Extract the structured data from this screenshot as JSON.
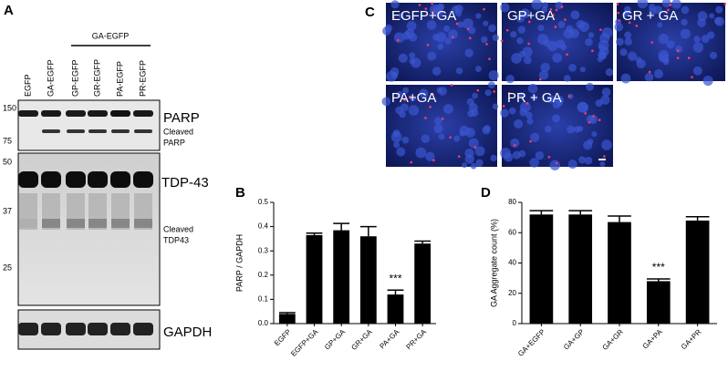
{
  "panel_labels": [
    "A",
    "B",
    "C",
    "D"
  ],
  "blot": {
    "group_label": "GA-EGFP",
    "lanes": [
      "EGFP",
      "GA-EGFP",
      "GP-EGFP",
      "GR-EGFP",
      "PA-EGFP",
      "PR-EGFP"
    ],
    "parp_markers": [
      "150",
      "75"
    ],
    "tdp_markers": [
      "50",
      "37",
      "25"
    ],
    "parp_label": "PARP",
    "cleaved_parp": [
      "Cleaved",
      "PARP"
    ],
    "tdp_label": "TDP-43",
    "cleaved_tdp": [
      "Cleaved",
      "TDP43"
    ],
    "gapdh_label": "GAPDH"
  },
  "micrographs": [
    "EGFP+GA",
    "GP+GA",
    "GR + GA",
    "PA+GA",
    "PR + GA"
  ],
  "chart_data": [
    {
      "type": "bar",
      "ylabel": "PARP / GAPDH",
      "categories": [
        "EGFP",
        "EGFP+GA",
        "GP+GA",
        "GR+GA",
        "PA+GA",
        "PR+GA"
      ],
      "values": [
        0.04,
        0.365,
        0.385,
        0.36,
        0.12,
        0.33
      ],
      "errors": [
        0.005,
        0.008,
        0.028,
        0.04,
        0.018,
        0.01
      ],
      "color": "#000000",
      "ylim": [
        0,
        0.5
      ],
      "yticks": [
        {
          "value": 0,
          "label": "0.0"
        },
        0.1,
        0.2,
        0.3,
        0.4,
        0.5
      ],
      "annotations": [
        {
          "text": "***",
          "category": "PA+GA"
        }
      ]
    },
    {
      "type": "bar",
      "ylabel": "GA Aggregate count (%)",
      "categories": [
        "GA+EGFP",
        "GA+GP",
        "GA+GR",
        "GA+PA",
        "GA+PR"
      ],
      "values": [
        72,
        72,
        67,
        28,
        68
      ],
      "errors": [
        2.5,
        2.5,
        4,
        1.5,
        2.5
      ],
      "color": "#000000",
      "ylim": [
        0,
        80
      ],
      "yticks": [
        0,
        20,
        40,
        60,
        80
      ],
      "annotations": [
        {
          "text": "***",
          "category": "GA+PA"
        }
      ]
    }
  ]
}
